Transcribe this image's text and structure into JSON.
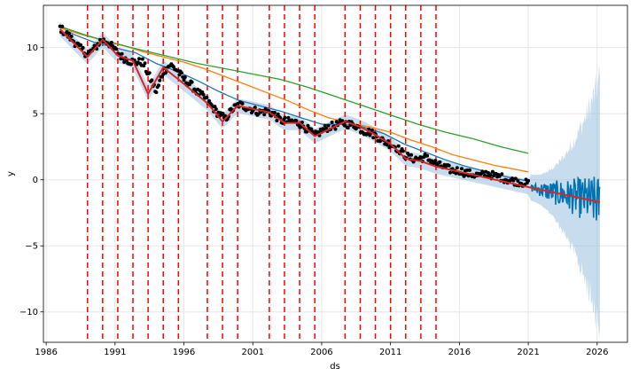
{
  "chart_data": {
    "type": "line",
    "xlabel": "ds",
    "ylabel": "y",
    "xlim": [
      1985.8,
      2028.2
    ],
    "ylim": [
      -12.3,
      13.2
    ],
    "xticks": [
      1986,
      1991,
      1996,
      2001,
      2006,
      2011,
      2016,
      2021,
      2026
    ],
    "xtick_labels": [
      "1986",
      "1991",
      "1996",
      "2001",
      "2006",
      "2011",
      "2016",
      "2021",
      "2026"
    ],
    "yticks": [
      -10,
      -5,
      0,
      5,
      10
    ],
    "ytick_labels": [
      "−10",
      "−5",
      "0",
      "5",
      "10"
    ],
    "grid": true,
    "colors": {
      "observed": "#000000",
      "forecast": "#0072B2",
      "uncertainty": "#8fbcdc",
      "trend": "#d62728",
      "changepoint": "#ff0000",
      "series_blue": "#1f77b4",
      "series_orange": "#ff7f0e",
      "series_green": "#2ca02c"
    },
    "changepoints": [
      1989.0,
      1990.1,
      1991.2,
      1992.3,
      1993.4,
      1994.5,
      1995.6,
      1997.7,
      1998.8,
      1999.9,
      2002.2,
      2003.3,
      2004.4,
      2005.5,
      2007.7,
      2008.8,
      2009.9,
      2011.0,
      2012.1,
      2013.2,
      2014.3
    ],
    "trend": {
      "x": [
        1987.0,
        1989.0,
        1990.1,
        1991.2,
        1992.3,
        1993.4,
        1994.5,
        1995.6,
        1997.7,
        1998.8,
        1999.9,
        2002.2,
        2003.3,
        2004.4,
        2005.5,
        2007.7,
        2008.8,
        2009.9,
        2011.0,
        2012.1,
        2013.2,
        2014.3,
        2021.2,
        2026.2
      ],
      "y": [
        11.4,
        9.3,
        10.6,
        9.4,
        9.0,
        6.5,
        8.5,
        7.6,
        5.8,
        4.4,
        5.6,
        5.1,
        4.3,
        4.3,
        3.3,
        4.4,
        4.0,
        3.4,
        2.7,
        1.6,
        1.4,
        1.0,
        -0.6,
        -1.7
      ]
    },
    "observed_anchors": {
      "x": [
        1987.0,
        1987.5,
        1988.0,
        1988.5,
        1989.0,
        1989.5,
        1990.0,
        1990.5,
        1991.0,
        1991.5,
        1992.0,
        1992.5,
        1993.0,
        1993.5,
        1994.0,
        1994.5,
        1995.0,
        1995.5,
        1996.0,
        1996.5,
        1997.0,
        1997.5,
        1998.0,
        1998.5,
        1999.0,
        1999.5,
        2000.0,
        2000.5,
        2001.0,
        2001.5,
        2002.0,
        2002.5,
        2003.0,
        2003.5,
        2004.0,
        2004.5,
        2005.0,
        2005.5,
        2006.0,
        2006.5,
        2007.0,
        2007.5,
        2008.0,
        2008.5,
        2009.0,
        2009.5,
        2010.0,
        2010.5,
        2011.0,
        2011.5,
        2012.0,
        2012.5,
        2013.0,
        2013.5,
        2014.0,
        2014.5,
        2015.0,
        2015.5,
        2016.0,
        2016.5,
        2017.0,
        2017.5,
        2018.0,
        2018.5,
        2019.0,
        2019.5,
        2020.0,
        2020.5,
        2021.0
      ],
      "y": [
        11.5,
        11.0,
        10.5,
        9.9,
        9.5,
        9.9,
        10.6,
        10.4,
        9.8,
        9.3,
        9.0,
        8.9,
        8.9,
        7.8,
        6.6,
        8.2,
        8.7,
        8.3,
        7.6,
        7.2,
        6.6,
        6.2,
        5.6,
        5.0,
        4.6,
        5.3,
        5.7,
        5.5,
        5.3,
        5.1,
        5.2,
        5.0,
        4.5,
        4.4,
        4.4,
        4.2,
        3.8,
        3.3,
        3.7,
        4.0,
        4.1,
        4.3,
        4.2,
        4.1,
        3.7,
        3.6,
        3.3,
        2.9,
        2.7,
        2.4,
        1.9,
        1.6,
        1.6,
        1.7,
        1.4,
        1.1,
        0.9,
        0.7,
        0.7,
        0.5,
        0.4,
        0.3,
        0.5,
        0.3,
        0.2,
        0.0,
        -0.1,
        -0.2,
        -0.3
      ]
    },
    "series": [
      {
        "x": [
          1987.0,
          1988.0,
          1989.5,
          1991.0,
          1992.5,
          1994.0,
          1995.5,
          1997.0,
          1998.5,
          2000.0,
          2001.5,
          2003.0,
          2004.5,
          2006.0,
          2007.5,
          2009.0,
          2010.5,
          2012.0,
          2013.5,
          2015.0,
          2016.5,
          2018.0,
          2019.5,
          2021.0
        ],
        "y": [
          11.6,
          11.0,
          10.4,
          10.0,
          9.6,
          8.8,
          8.2,
          7.5,
          6.7,
          6.0,
          5.6,
          5.2,
          4.7,
          4.2,
          4.2,
          4.0,
          3.5,
          2.7,
          2.1,
          1.5,
          1.0,
          0.6,
          0.2,
          -0.1
        ]
      },
      {
        "x": [
          1987.0,
          1988.5,
          1990.0,
          1991.5,
          1993.0,
          1994.5,
          1996.0,
          1997.5,
          1999.0,
          2000.5,
          2002.0,
          2003.5,
          2005.0,
          2006.5,
          2008.0,
          2009.5,
          2011.0,
          2012.5,
          2014.0,
          2015.5,
          2017.0,
          2018.5,
          2020.0,
          2021.0
        ],
        "y": [
          11.5,
          11.0,
          10.6,
          10.2,
          9.7,
          9.3,
          8.9,
          8.4,
          7.8,
          7.2,
          6.6,
          6.0,
          5.3,
          4.7,
          4.3,
          4.0,
          3.6,
          3.0,
          2.5,
          1.9,
          1.5,
          1.1,
          0.8,
          0.6
        ]
      },
      {
        "x": [
          1987.0,
          1989.0,
          1991.0,
          1993.0,
          1995.0,
          1997.0,
          1999.0,
          2001.0,
          2003.0,
          2005.0,
          2007.0,
          2009.0,
          2011.0,
          2013.0,
          2015.0,
          2017.0,
          2019.0,
          2021.0
        ],
        "y": [
          11.6,
          10.9,
          10.3,
          9.8,
          9.3,
          8.8,
          8.4,
          8.0,
          7.6,
          7.0,
          6.3,
          5.6,
          4.9,
          4.2,
          3.6,
          3.1,
          2.5,
          2.0
        ]
      }
    ],
    "forecast": {
      "x_start": 2021.2,
      "x_end": 2026.2,
      "y_start": -0.6,
      "y_end": -1.7,
      "band_start": 1.0,
      "band_end": 10.0
    }
  }
}
